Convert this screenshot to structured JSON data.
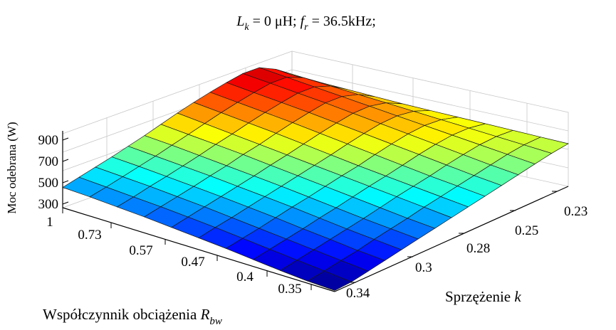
{
  "chart_data": {
    "type": "surface",
    "title": {
      "l_main": "L",
      "l_sub": "k",
      "l_rest": " = 0 μH; ",
      "f_main": "f",
      "f_sub": "r",
      "f_rest": " = 36.5kHz;"
    },
    "zlabel": "Moc odebrana (W)",
    "z_ticks": [
      "900",
      "700",
      "500",
      "300"
    ],
    "z_tick_values": [
      900,
      700,
      500,
      300
    ],
    "zlim": [
      300,
      1000
    ],
    "xlabel": {
      "main": "Współczynnik obciążenia  ",
      "var": "R",
      "sub": "bw"
    },
    "x_ticks": [
      "1",
      "0.73",
      "0.57",
      "0.47",
      "0.4",
      "0.35"
    ],
    "ylabel": {
      "main": "Sprzężenie  ",
      "var": "k"
    },
    "y_ticks": [
      "0.23",
      "0.25",
      "0.28",
      "0.3",
      "0.34"
    ],
    "grid": true,
    "colormap": "jet",
    "colors": {
      "low": "#0000ff",
      "mid": "#ffff00",
      "high": "#ff0000"
    },
    "z": [
      [
        700,
        705,
        710,
        715,
        720,
        725,
        730,
        740,
        750,
        760,
        770
      ],
      [
        680,
        700,
        720,
        740,
        760,
        780,
        800,
        820,
        840,
        860,
        880
      ],
      [
        650,
        680,
        710,
        740,
        770,
        800,
        830,
        860,
        890,
        920,
        950
      ],
      [
        620,
        650,
        685,
        720,
        755,
        790,
        825,
        860,
        890,
        920,
        950
      ],
      [
        590,
        620,
        655,
        690,
        725,
        760,
        795,
        830,
        860,
        890,
        920
      ],
      [
        560,
        590,
        620,
        655,
        690,
        725,
        760,
        795,
        825,
        855,
        885
      ],
      [
        530,
        560,
        590,
        620,
        650,
        685,
        720,
        755,
        785,
        815,
        845
      ],
      [
        500,
        530,
        560,
        590,
        620,
        650,
        680,
        710,
        740,
        770,
        800
      ],
      [
        470,
        495,
        525,
        555,
        585,
        615,
        645,
        675,
        700,
        725,
        750
      ],
      [
        440,
        465,
        490,
        520,
        550,
        580,
        605,
        630,
        655,
        680,
        700
      ],
      [
        410,
        435,
        460,
        490,
        520,
        545,
        570,
        595,
        615,
        635,
        655
      ],
      [
        380,
        400,
        430,
        455,
        485,
        510,
        535,
        555,
        575,
        595,
        610
      ],
      [
        350,
        375,
        400,
        425,
        450,
        475,
        500,
        520,
        540,
        555,
        570
      ],
      [
        320,
        345,
        370,
        395,
        420,
        445,
        465,
        485,
        500,
        515,
        530
      ],
      [
        310,
        320,
        340,
        365,
        390,
        410,
        430,
        450,
        465,
        480,
        490
      ]
    ]
  }
}
